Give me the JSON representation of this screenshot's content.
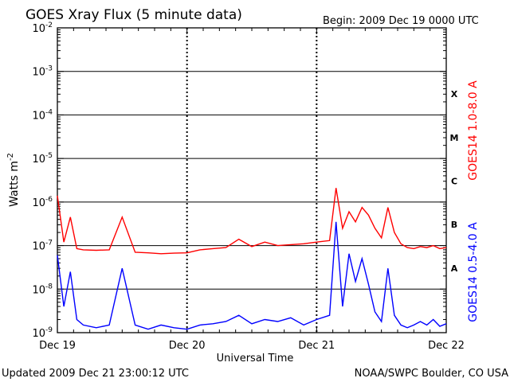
{
  "chart_data": {
    "type": "line",
    "title": "GOES Xray Flux (5 minute data)",
    "begin_label": "Begin:  2009 Dec 19 0000 UTC",
    "xlabel": "Universal Time",
    "ylabel": "Watts m",
    "ylabel_sup": "-2",
    "yscale": "log",
    "ylim": [
      1e-09,
      0.01
    ],
    "x_ticks": [
      "Dec 19",
      "Dec 20",
      "Dec 21",
      "Dec 22"
    ],
    "y_ticks": [
      {
        "base": "10",
        "exp": "-9"
      },
      {
        "base": "10",
        "exp": "-8"
      },
      {
        "base": "10",
        "exp": "-7"
      },
      {
        "base": "10",
        "exp": "-6"
      },
      {
        "base": "10",
        "exp": "-5"
      },
      {
        "base": "10",
        "exp": "-4"
      },
      {
        "base": "10",
        "exp": "-3"
      },
      {
        "base": "10",
        "exp": "-2"
      }
    ],
    "flare_classes": [
      {
        "label": "A",
        "y": 1e-08
      },
      {
        "label": "B",
        "y": 1e-07
      },
      {
        "label": "C",
        "y": 1e-06
      },
      {
        "label": "M",
        "y": 1e-05
      },
      {
        "label": "X",
        "y": 0.0001
      }
    ],
    "series": [
      {
        "name": "GOES14 1.0-8.0 A",
        "color": "#ff0000",
        "x": [
          0,
          0.05,
          0.1,
          0.15,
          0.2,
          0.3,
          0.4,
          0.5,
          0.6,
          0.7,
          0.8,
          0.9,
          1.0,
          1.1,
          1.2,
          1.3,
          1.4,
          1.5,
          1.6,
          1.7,
          1.8,
          1.9,
          2.0,
          2.1,
          2.15,
          2.2,
          2.25,
          2.3,
          2.35,
          2.4,
          2.45,
          2.5,
          2.55,
          2.6,
          2.65,
          2.7,
          2.75,
          2.8,
          2.85,
          2.9,
          2.95,
          3.0
        ],
        "y": [
          1.4e-06,
          1.2e-07,
          4.5e-07,
          8.5e-08,
          8e-08,
          7.8e-08,
          8e-08,
          4.5e-07,
          7e-08,
          6.8e-08,
          6.5e-08,
          6.7e-08,
          6.8e-08,
          8e-08,
          8.5e-08,
          9e-08,
          1.4e-07,
          9.5e-08,
          1.2e-07,
          1e-07,
          1.05e-07,
          1.1e-07,
          1.2e-07,
          1.3e-07,
          2.1e-06,
          2.5e-07,
          6e-07,
          3.5e-07,
          7.5e-07,
          5e-07,
          2.5e-07,
          1.5e-07,
          7.5e-07,
          2e-07,
          1.1e-07,
          9e-08,
          8.5e-08,
          9.5e-08,
          9e-08,
          1e-07,
          8.5e-08,
          9e-08
        ]
      },
      {
        "name": "GOES14 0.5-4.0 A",
        "color": "#0000ff",
        "x": [
          0,
          0.05,
          0.1,
          0.15,
          0.2,
          0.3,
          0.4,
          0.5,
          0.6,
          0.7,
          0.8,
          0.9,
          1.0,
          1.1,
          1.2,
          1.3,
          1.4,
          1.5,
          1.6,
          1.7,
          1.8,
          1.9,
          2.0,
          2.1,
          2.15,
          2.2,
          2.25,
          2.3,
          2.35,
          2.4,
          2.45,
          2.5,
          2.55,
          2.6,
          2.65,
          2.7,
          2.75,
          2.8,
          2.85,
          2.9,
          2.95,
          3.0
        ],
        "y": [
          6e-08,
          4e-09,
          2.5e-08,
          2e-09,
          1.5e-09,
          1.3e-09,
          1.5e-09,
          3e-08,
          1.5e-09,
          1.2e-09,
          1.5e-09,
          1.3e-09,
          1.2e-09,
          1.5e-09,
          1.6e-09,
          1.8e-09,
          2.5e-09,
          1.6e-09,
          2e-09,
          1.8e-09,
          2.2e-09,
          1.5e-09,
          2e-09,
          2.5e-09,
          3.5e-07,
          4e-09,
          6.5e-08,
          1.5e-08,
          5e-08,
          1.3e-08,
          3e-09,
          1.8e-09,
          3e-08,
          2.5e-09,
          1.5e-09,
          1.3e-09,
          1.5e-09,
          1.8e-09,
          1.5e-09,
          2e-09,
          1.4e-09,
          1.6e-09
        ]
      }
    ]
  },
  "footer": {
    "updated": "Updated 2009 Dec 21 23:00:12 UTC",
    "credit": "NOAA/SWPC Boulder, CO USA"
  }
}
